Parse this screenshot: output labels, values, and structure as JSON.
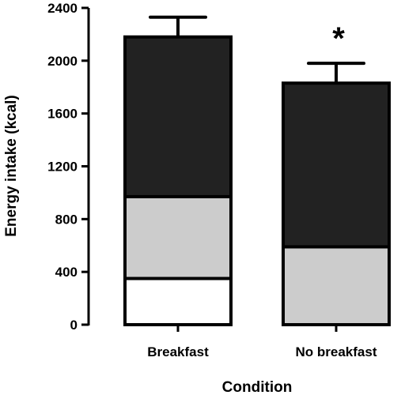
{
  "chart_data": {
    "type": "bar",
    "stacked": true,
    "title": "",
    "xlabel": "Condition",
    "ylabel": "Energy intake (kcal)",
    "ylim": [
      0,
      2400
    ],
    "yticks": [
      "0",
      "400",
      "800",
      "1200",
      "1600",
      "2000",
      "2400"
    ],
    "categories": [
      "Breakfast",
      "No breakfast"
    ],
    "series": [
      {
        "fill": "#ffffff",
        "values": [
          350,
          0
        ]
      },
      {
        "fill": "#cccccc",
        "values": [
          620,
          590
        ]
      },
      {
        "fill": "#222222",
        "values": [
          1210,
          1240
        ]
      }
    ],
    "totals": [
      2180,
      1830
    ],
    "error_upper": [
      2330,
      1980
    ],
    "annotations": [
      {
        "category": "No breakfast",
        "text": "*"
      }
    ],
    "grid": false,
    "legend": "none"
  }
}
